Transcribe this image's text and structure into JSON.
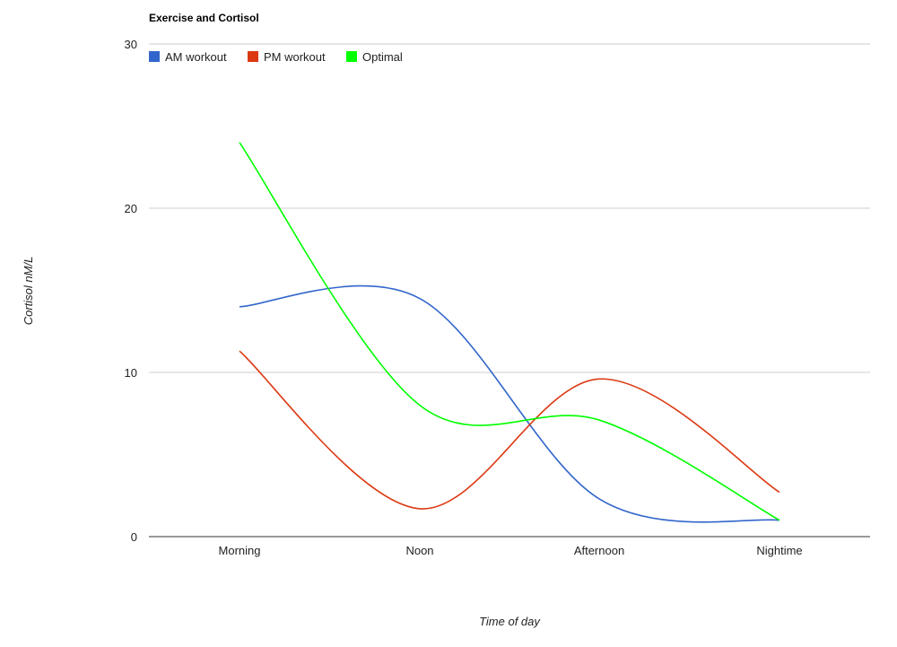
{
  "chart_data": {
    "type": "line",
    "title": "Exercise and Cortisol",
    "xlabel": "Time of day",
    "ylabel": "Cortisol nM/L",
    "categories": [
      "Morning",
      "Noon",
      "Afternoon",
      "Nightime"
    ],
    "ylim": [
      0,
      30
    ],
    "yticks": [
      "0",
      "10",
      "20",
      "30"
    ],
    "grid": true,
    "legend_position": "top-left",
    "curve": "smooth",
    "series": [
      {
        "name": "AM workout",
        "color": "#3366cc",
        "values": [
          14,
          14.5,
          2.3,
          1
        ]
      },
      {
        "name": "PM workout",
        "color": "#dc3912",
        "values": [
          11.3,
          1.7,
          9.6,
          2.7
        ]
      },
      {
        "name": "Optimal",
        "color": "#00ff00",
        "values": [
          24,
          8,
          7.1,
          1
        ]
      }
    ]
  }
}
